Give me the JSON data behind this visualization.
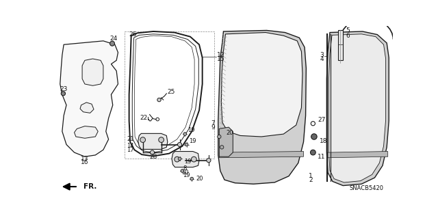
{
  "background_color": "#ffffff",
  "line_color": "#1a1a1a",
  "text_color": "#111111",
  "watermark": "SNACB5420",
  "direction_label": "FR.",
  "fig_width": 6.4,
  "fig_height": 3.19
}
